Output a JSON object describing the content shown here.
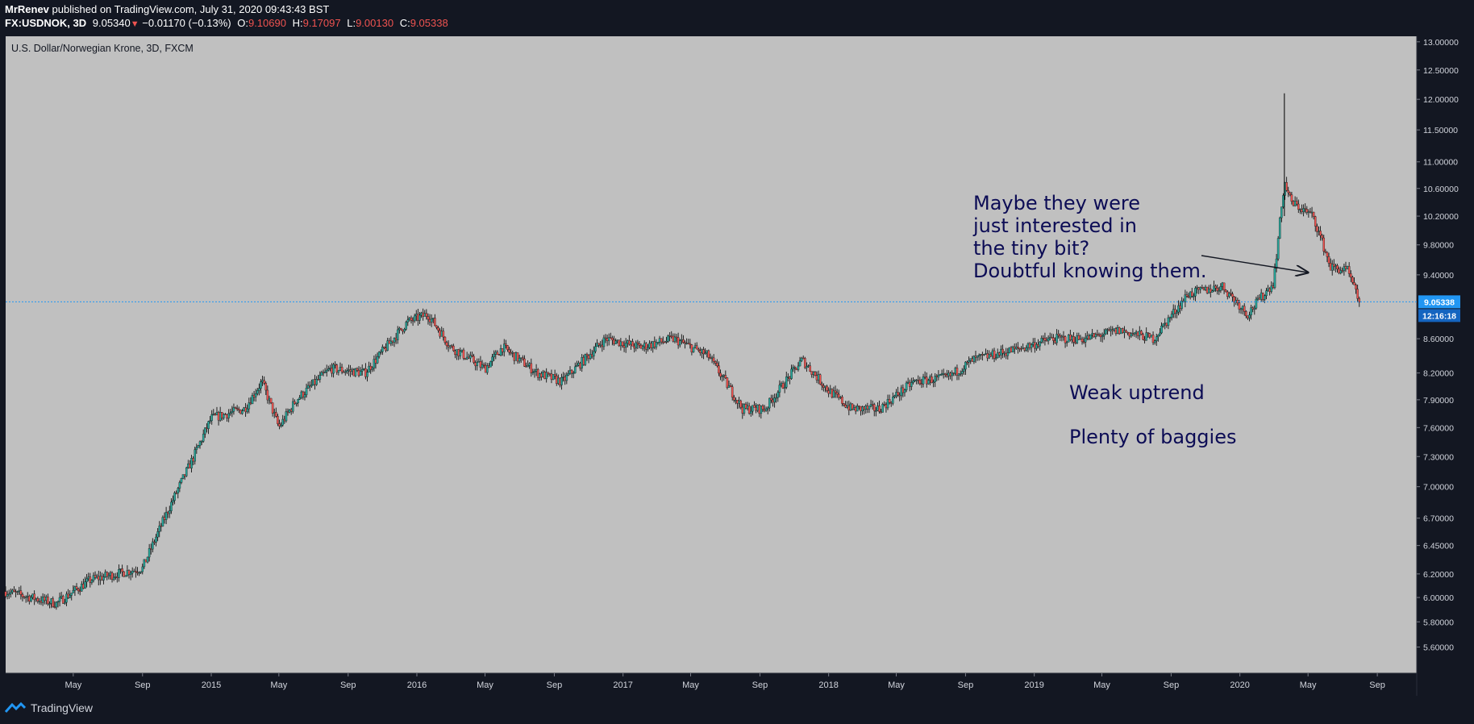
{
  "header": {
    "author": "MrRenev",
    "published": "published on TradingView.com, July 31, 2020 09:43:43 BST",
    "symbol": "FX:USDNOK, 3D",
    "last": "9.05340",
    "change": "−0.01170 (−0.13%)",
    "o_label": "O:",
    "o": "9.10690",
    "h_label": "H:",
    "h": "9.17097",
    "l_label": "L:",
    "l": "9.00130",
    "c_label": "C:",
    "c": "9.05338"
  },
  "footer": {
    "brand": "TradingView",
    "logo_icon": "tradingview-logo-icon"
  },
  "colors": {
    "bg": "#131722",
    "plot": "#c0c0c0",
    "up": "#26a69a",
    "down": "#ef5350",
    "annotation": "#0c0c55",
    "price_tag": "#2196f3"
  },
  "chart_data": {
    "type": "candlestick",
    "title": "U.S. Dollar/Norwegian Krone, 3D, FXCM",
    "ylim": [
      5.4,
      13.1
    ],
    "y_scale": "log",
    "y_ticks": [
      "13.00000",
      "12.50000",
      "12.00000",
      "11.50000",
      "11.00000",
      "10.60000",
      "10.20000",
      "9.80000",
      "9.40000",
      "8.60000",
      "8.20000",
      "7.90000",
      "7.60000",
      "7.30000",
      "7.00000",
      "6.70000",
      "6.45000",
      "6.20000",
      "6.00000",
      "5.80000",
      "5.60000"
    ],
    "x_ticks": [
      {
        "label": "May",
        "date": "2014-05-01"
      },
      {
        "label": "Sep",
        "date": "2014-09-01"
      },
      {
        "label": "2015",
        "date": "2015-01-01"
      },
      {
        "label": "May",
        "date": "2015-05-01"
      },
      {
        "label": "Sep",
        "date": "2015-09-01"
      },
      {
        "label": "2016",
        "date": "2016-01-01"
      },
      {
        "label": "May",
        "date": "2016-05-01"
      },
      {
        "label": "Sep",
        "date": "2016-09-01"
      },
      {
        "label": "2017",
        "date": "2017-01-01"
      },
      {
        "label": "May",
        "date": "2017-05-01"
      },
      {
        "label": "Sep",
        "date": "2017-09-01"
      },
      {
        "label": "2018",
        "date": "2018-01-01"
      },
      {
        "label": "May",
        "date": "2018-05-01"
      },
      {
        "label": "Sep",
        "date": "2018-09-01"
      },
      {
        "label": "2019",
        "date": "2019-01-01"
      },
      {
        "label": "May",
        "date": "2019-05-01"
      },
      {
        "label": "Sep",
        "date": "2019-09-01"
      },
      {
        "label": "2020",
        "date": "2020-01-01"
      },
      {
        "label": "May",
        "date": "2020-05-01"
      },
      {
        "label": "Sep",
        "date": "2020-09-01"
      }
    ],
    "series": [
      {
        "dates": [
          "2014-01-01",
          "2014-04-01",
          "2014-06-01",
          "2014-09-01",
          "2014-12-01",
          "2015-01-01",
          "2015-03-01",
          "2015-04-01",
          "2015-05-01",
          "2015-06-01",
          "2015-08-01",
          "2015-10-01",
          "2015-12-15",
          "2016-01-20",
          "2016-03-01",
          "2016-05-01",
          "2016-06-01",
          "2016-08-01",
          "2016-09-15",
          "2016-12-01",
          "2017-02-01",
          "2017-04-01",
          "2017-06-01",
          "2017-08-01",
          "2017-09-10",
          "2017-11-15",
          "2018-01-01",
          "2018-02-10",
          "2018-04-01",
          "2018-06-01",
          "2018-08-01",
          "2018-09-15",
          "2018-12-15",
          "2019-02-01",
          "2019-04-01",
          "2019-06-01",
          "2019-08-01",
          "2019-10-01",
          "2019-12-01",
          "2020-01-15",
          "2020-03-01",
          "2020-03-20",
          "2020-04-01",
          "2020-05-10",
          "2020-06-10",
          "2020-07-10",
          "2020-07-31"
        ],
        "close": [
          6.05,
          5.95,
          6.15,
          6.25,
          7.3,
          7.7,
          7.8,
          8.1,
          7.6,
          7.9,
          8.25,
          8.2,
          8.8,
          8.9,
          8.5,
          8.25,
          8.5,
          8.2,
          8.1,
          8.6,
          8.5,
          8.6,
          8.4,
          7.8,
          7.8,
          8.35,
          8.0,
          7.8,
          7.8,
          8.1,
          8.15,
          8.35,
          8.5,
          8.6,
          8.6,
          8.7,
          8.6,
          9.15,
          9.25,
          8.9,
          9.3,
          10.7,
          10.4,
          10.2,
          9.5,
          9.45,
          9.05
        ]
      }
    ],
    "last_value": "9.05338",
    "countdown": "12:16:18",
    "annotations": [
      {
        "text": [
          "Maybe they were",
          "just interested in",
          "the tiny bit?",
          "Doubtful knowing them."
        ]
      },
      {
        "text": [
          "Weak uptrend"
        ]
      },
      {
        "text": [
          "Plenty of baggies"
        ]
      }
    ]
  }
}
